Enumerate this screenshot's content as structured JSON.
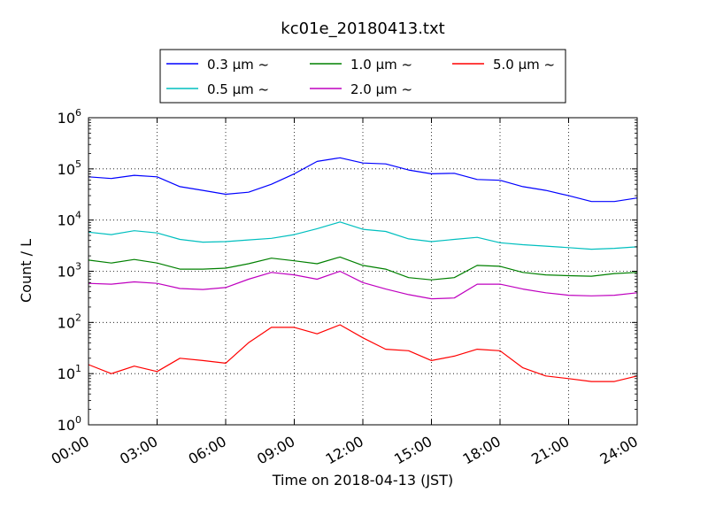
{
  "chart_data": {
    "type": "line",
    "title": "kc01e_20180413.txt",
    "xlabel": "Time on 2018-04-13 (JST)",
    "ylabel": "Count / L",
    "yscale": "log",
    "ylim": [
      1,
      1000000
    ],
    "xlim": [
      "00:00",
      "24:00"
    ],
    "grid": true,
    "legend_position": "top",
    "x_ticks": [
      "00:00",
      "03:00",
      "06:00",
      "09:00",
      "12:00",
      "15:00",
      "18:00",
      "21:00",
      "24:00"
    ],
    "y_ticks": [
      {
        "base": "10",
        "exp": "0"
      },
      {
        "base": "10",
        "exp": "1"
      },
      {
        "base": "10",
        "exp": "2"
      },
      {
        "base": "10",
        "exp": "3"
      },
      {
        "base": "10",
        "exp": "4"
      },
      {
        "base": "10",
        "exp": "5"
      },
      {
        "base": "10",
        "exp": "6"
      }
    ],
    "x_hours": [
      0,
      1,
      2,
      3,
      4,
      5,
      6,
      7,
      8,
      9,
      10,
      11,
      12,
      13,
      14,
      15,
      16,
      17,
      18,
      19,
      20,
      21,
      22,
      23,
      24
    ],
    "series": [
      {
        "name": "0.3 μm ~",
        "color": "#0000ff",
        "values": [
          70000,
          65000,
          75000,
          70000,
          45000,
          38000,
          32000,
          35000,
          50000,
          80000,
          140000,
          165000,
          130000,
          125000,
          95000,
          80000,
          82000,
          62000,
          60000,
          45000,
          38000,
          30000,
          23000,
          23000,
          27000
        ]
      },
      {
        "name": "0.5 μm ~",
        "color": "#00bfbf",
        "values": [
          5800,
          5200,
          6200,
          5600,
          4200,
          3700,
          3800,
          4100,
          4400,
          5200,
          6800,
          9200,
          6600,
          6000,
          4300,
          3800,
          4200,
          4600,
          3600,
          3300,
          3100,
          2900,
          2700,
          2800,
          3000
        ]
      },
      {
        "name": "1.0 μm ~",
        "color": "#008000",
        "values": [
          1650,
          1450,
          1700,
          1450,
          1100,
          1100,
          1150,
          1400,
          1800,
          1600,
          1400,
          1900,
          1300,
          1100,
          750,
          680,
          750,
          1300,
          1250,
          950,
          850,
          820,
          800,
          900,
          950
        ]
      },
      {
        "name": "2.0 μm ~",
        "color": "#bf00bf",
        "values": [
          580,
          560,
          620,
          580,
          460,
          440,
          480,
          700,
          950,
          850,
          700,
          1000,
          600,
          450,
          350,
          290,
          300,
          560,
          560,
          450,
          380,
          340,
          330,
          340,
          380
        ]
      },
      {
        "name": "5.0 μm ~",
        "color": "#ff0000",
        "values": [
          15,
          10,
          14,
          11,
          20,
          18,
          16,
          40,
          80,
          80,
          60,
          90,
          50,
          30,
          28,
          18,
          22,
          30,
          28,
          13,
          9,
          8,
          7,
          7,
          9
        ]
      }
    ]
  }
}
